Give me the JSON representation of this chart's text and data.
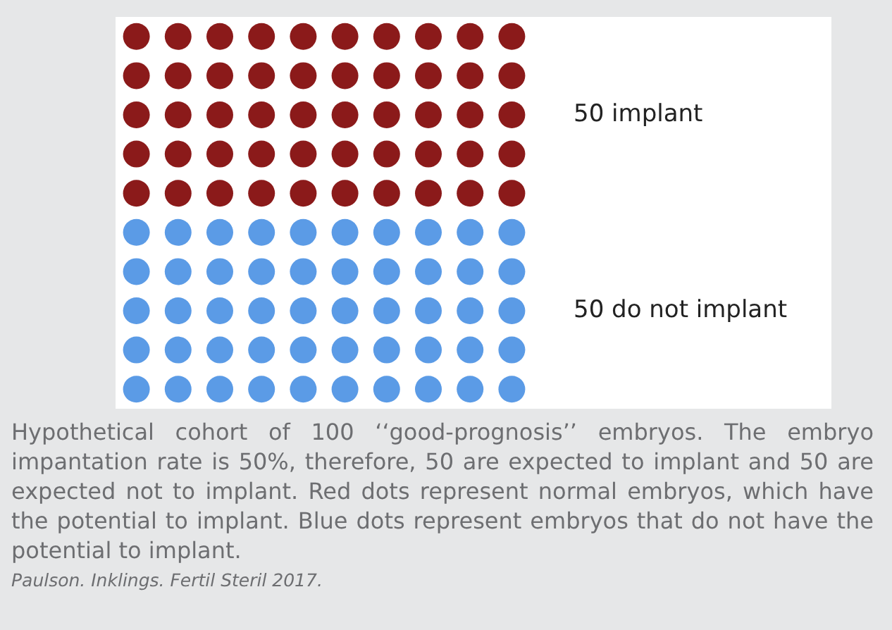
{
  "chart_data": {
    "type": "other",
    "categories": [
      "implant",
      "do not implant"
    ],
    "values": [
      50,
      50
    ],
    "colors": [
      "#8b1a1a",
      "#5b9be6"
    ],
    "data_labels": true,
    "annotations": [
      "Hypothetical cohort of 100 ‘‘good-prognosis’’ embryos. The embryo impantation rate is 50%, therefore, 50 are expected to implant and 50 are expected not to implant. Red dots represent normal embryos, which have the potential to implant. Blue dots represent embryos that do not have the potential to implant.",
      "Paulson. Inklings. Fertil Steril 2017."
    ]
  }
}
